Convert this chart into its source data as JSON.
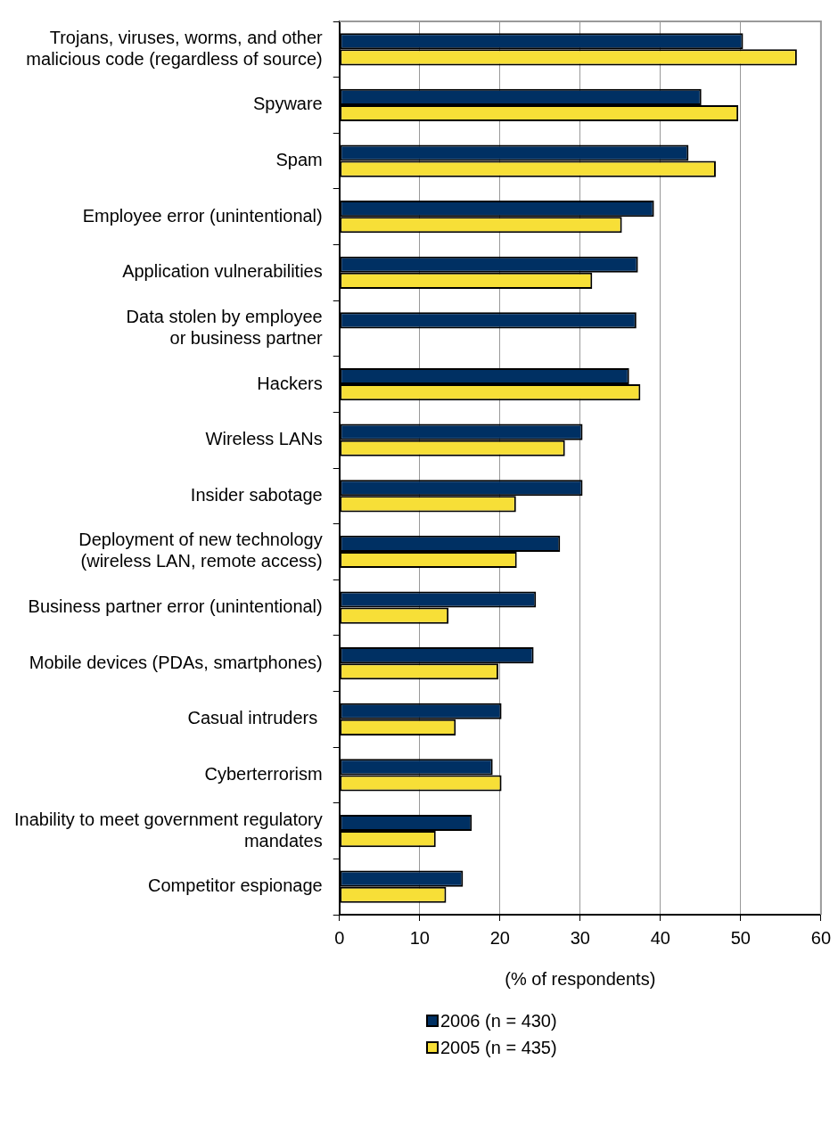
{
  "chart_data": {
    "type": "bar",
    "orientation": "horizontal",
    "xlabel": "(% of respondents)",
    "categories": [
      "Trojans, viruses, worms, and other\nmalicious code (regardless of source)",
      "Spyware",
      "Spam",
      "Employee error (unintentional)",
      "Application vulnerabilities",
      "Data stolen by employee\n or business partner",
      "Hackers",
      "Wireless LANs",
      "Insider sabotage",
      "Deployment of new technology\n(wireless LAN, remote access)",
      "Business partner error (unintentional)",
      "Mobile devices (PDAs, smartphones)",
      "Casual intruders ",
      "Cyberterrorism",
      "Inability to meet government regulatory\nmandates",
      "Competitor espionage"
    ],
    "series": [
      {
        "name": "2006 (n = 430)",
        "color": "#003063",
        "values": [
          50.3,
          45.1,
          43.5,
          39.2,
          37.2,
          37.0,
          36.1,
          30.3,
          30.3,
          27.5,
          24.5,
          24.2,
          20.2,
          19.1,
          16.5,
          15.4
        ]
      },
      {
        "name": "2005 (n = 435)",
        "color": "#f7df37",
        "values": [
          57.0,
          49.7,
          46.9,
          35.2,
          31.5,
          null,
          37.5,
          28.1,
          22.0,
          22.1,
          13.6,
          19.8,
          14.5,
          20.2,
          12.0,
          13.3
        ]
      }
    ],
    "xlim": [
      0,
      60
    ],
    "xticks": [
      0,
      10,
      20,
      30,
      40,
      50,
      60
    ],
    "grid": "x",
    "legend": "bottom"
  }
}
